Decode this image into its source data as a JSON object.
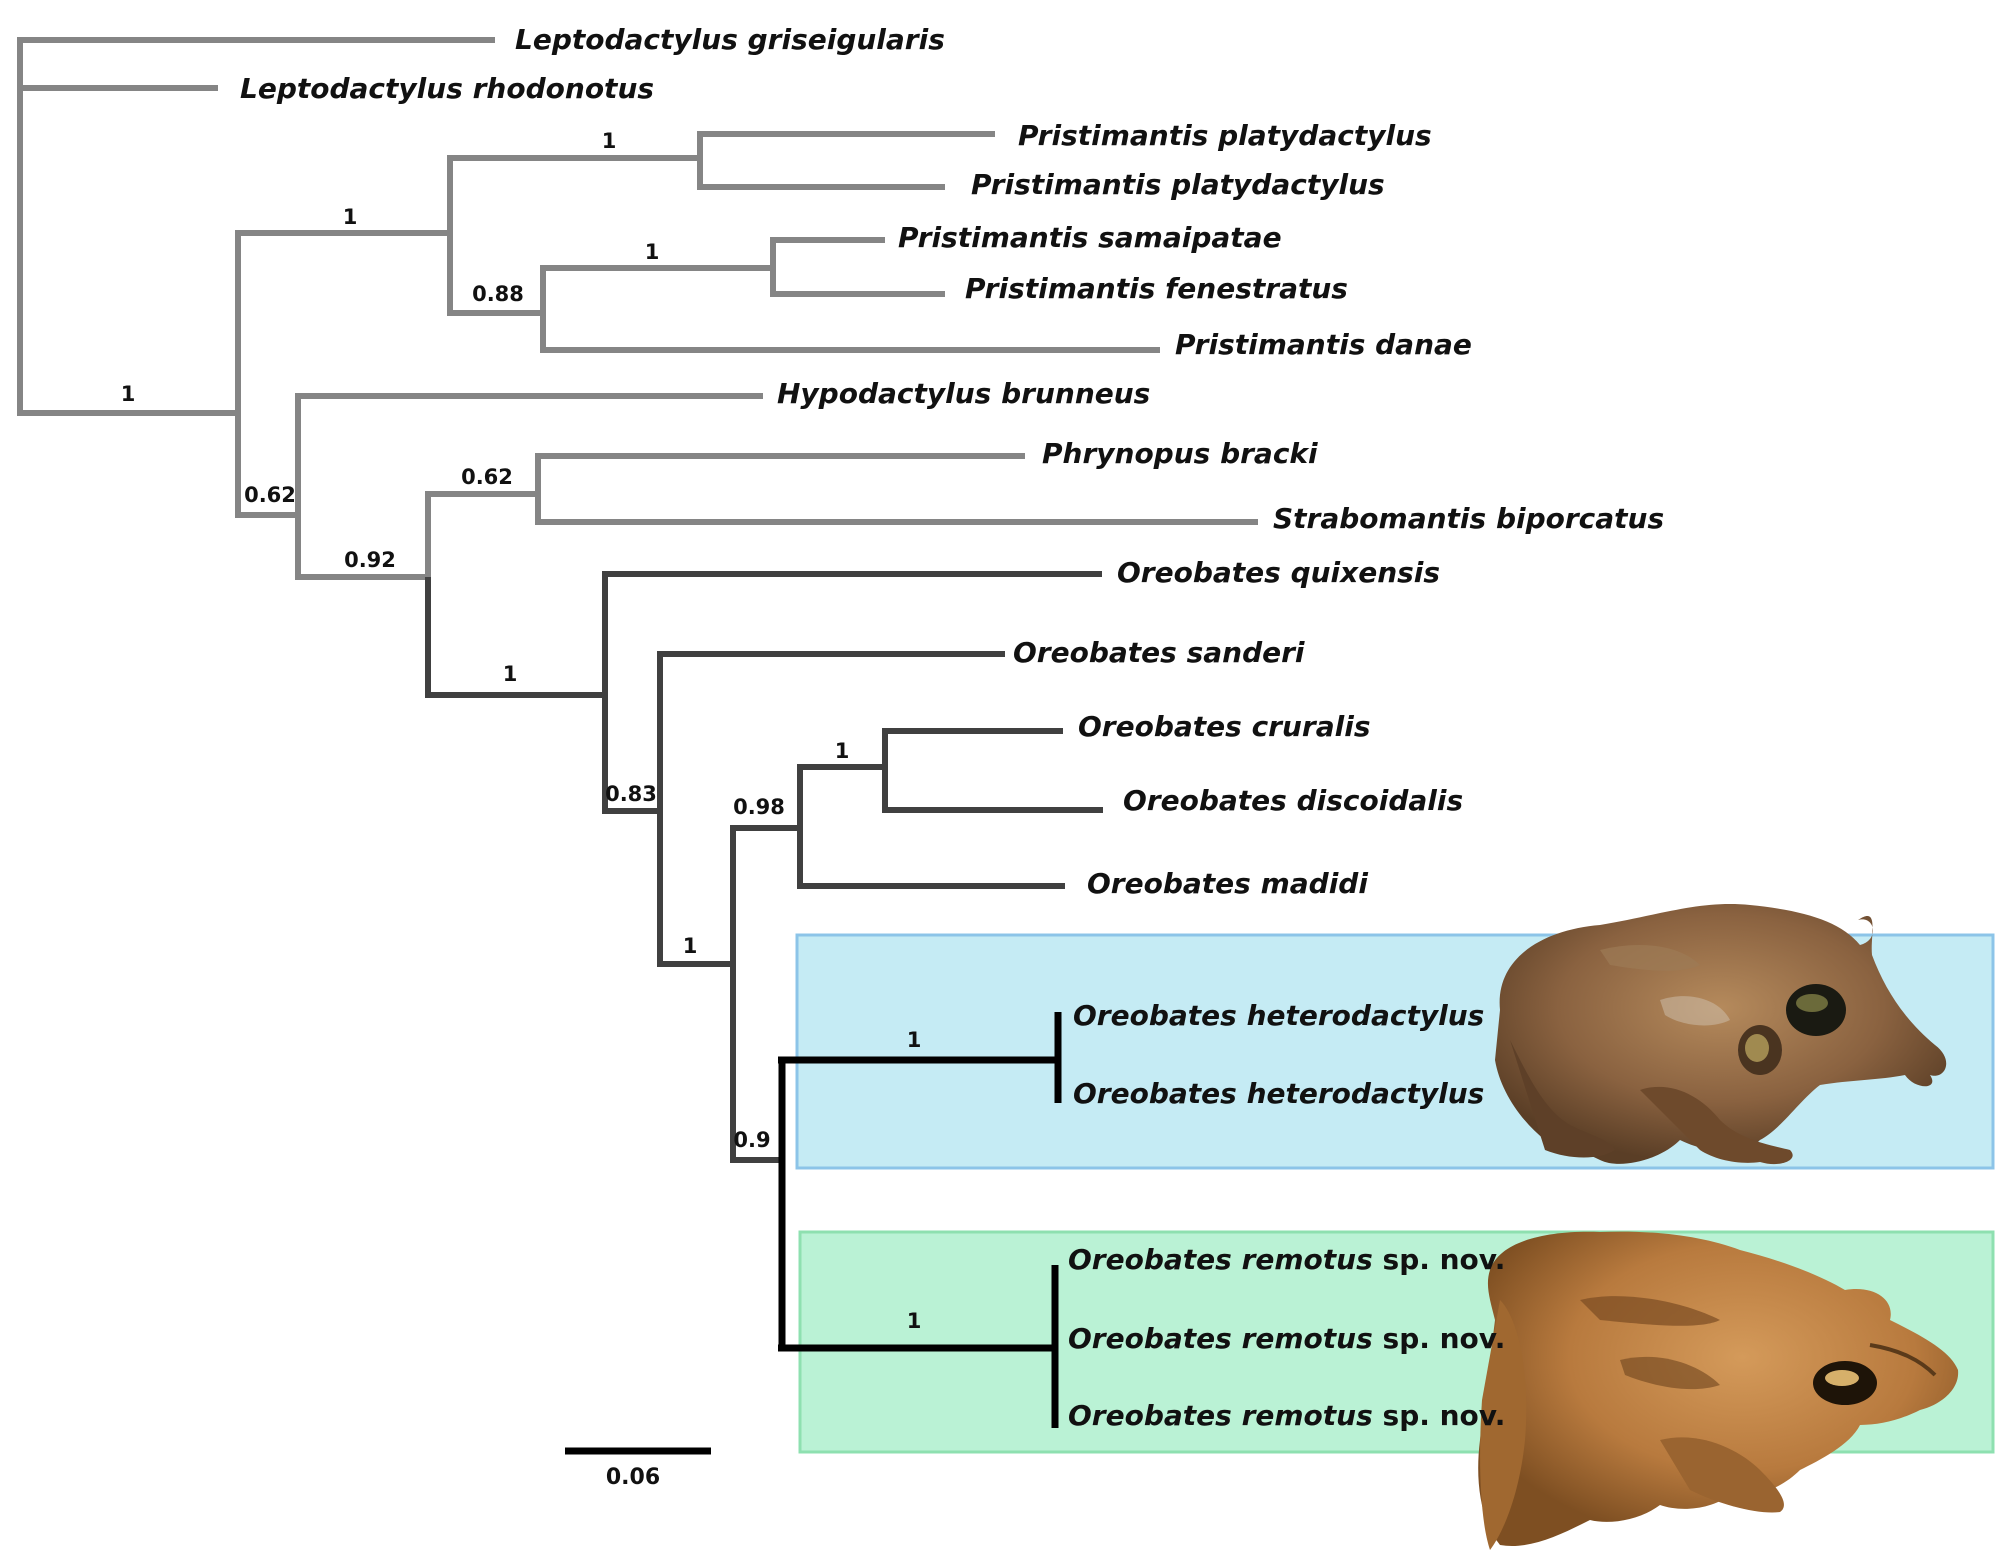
{
  "taxa": [
    {
      "genus": "Leptodactylus",
      "species": "griseigularis",
      "suffix": ""
    },
    {
      "genus": "Leptodactylus",
      "species": "rhodonotus",
      "suffix": ""
    },
    {
      "genus": "Pristimantis",
      "species": "platydactylus",
      "suffix": ""
    },
    {
      "genus": "Pristimantis",
      "species": "platydactylus",
      "suffix": ""
    },
    {
      "genus": "Pristimantis",
      "species": "samaipatae",
      "suffix": ""
    },
    {
      "genus": "Pristimantis",
      "species": "fenestratus",
      "suffix": ""
    },
    {
      "genus": "Pristimantis",
      "species": "danae",
      "suffix": ""
    },
    {
      "genus": "Hypodactylus",
      "species": "brunneus",
      "suffix": ""
    },
    {
      "genus": "Phrynopus",
      "species": "bracki",
      "suffix": ""
    },
    {
      "genus": "Strabomantis",
      "species": "biporcatus",
      "suffix": ""
    },
    {
      "genus": "Oreobates",
      "species": "quixensis",
      "suffix": ""
    },
    {
      "genus": "Oreobates",
      "species": "sanderi",
      "suffix": ""
    },
    {
      "genus": "Oreobates",
      "species": "cruralis",
      "suffix": ""
    },
    {
      "genus": "Oreobates",
      "species": "discoidalis",
      "suffix": ""
    },
    {
      "genus": "Oreobates",
      "species": "madidi",
      "suffix": ""
    },
    {
      "genus": "Oreobates",
      "species": "heterodactylus",
      "suffix": ""
    },
    {
      "genus": "Oreobates",
      "species": "heterodactylus",
      "suffix": ""
    },
    {
      "genus": "Oreobates",
      "species": "remotus",
      "suffix": "sp. nov."
    },
    {
      "genus": "Oreobates",
      "species": "remotus",
      "suffix": "sp. nov."
    },
    {
      "genus": "Oreobates",
      "species": "remotus",
      "suffix": "sp. nov."
    }
  ],
  "support_values": [
    "1",
    "1",
    "1",
    "0.88",
    "1",
    "0.62",
    "0.62",
    "0.92",
    "1",
    "0.83",
    "1",
    "0.98",
    "1",
    "0.9",
    "1",
    "1"
  ],
  "scale_bar": {
    "label": "0.06"
  },
  "colors": {
    "outgroup_branch": "#858585",
    "oreobates_branch": "#404040",
    "focal_branch": "#000000",
    "heterodactylus_box": "#c5ebf4",
    "heterodactylus_box_border": "#8cc4e8",
    "remotus_box": "#baf2d5",
    "remotus_box_border": "#8ee0b0"
  },
  "images": [
    "frog-photo-heterodactylus",
    "frog-photo-remotus"
  ]
}
